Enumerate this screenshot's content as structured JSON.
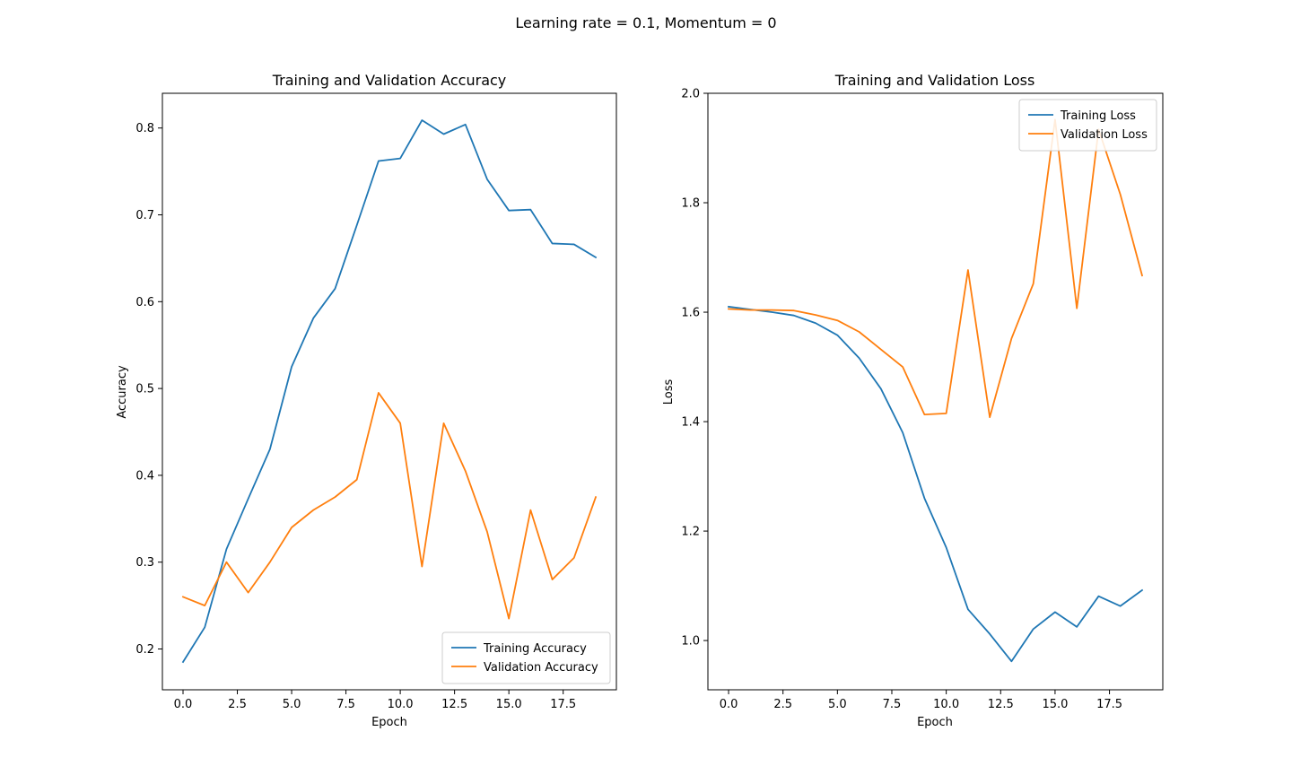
{
  "figure": {
    "suptitle": "Learning rate = 0.1, Momentum = 0"
  },
  "colors": {
    "training": "#1f77b4",
    "validation": "#ff7f0e",
    "axes": "#000000",
    "background": "#ffffff"
  },
  "chart_data": [
    {
      "type": "line",
      "title": "Training and Validation Accuracy",
      "xlabel": "Epoch",
      "ylabel": "Accuracy",
      "xlim": [
        -0.95,
        19.95
      ],
      "ylim": [
        0.153,
        0.84
      ],
      "xticks": [
        0.0,
        2.5,
        5.0,
        7.5,
        10.0,
        12.5,
        15.0,
        17.5
      ],
      "xtick_labels": [
        "0.0",
        "2.5",
        "5.0",
        "7.5",
        "10.0",
        "12.5",
        "15.0",
        "17.5"
      ],
      "yticks": [
        0.2,
        0.3,
        0.4,
        0.5,
        0.6,
        0.7,
        0.8
      ],
      "ytick_labels": [
        "0.2",
        "0.3",
        "0.4",
        "0.5",
        "0.6",
        "0.7",
        "0.8"
      ],
      "grid": false,
      "legend": "lower right",
      "x": [
        0,
        1,
        2,
        3,
        4,
        5,
        6,
        7,
        8,
        9,
        10,
        11,
        12,
        13,
        14,
        15,
        16,
        17,
        18,
        19
      ],
      "series": [
        {
          "name": "Training Accuracy",
          "color": "#1f77b4",
          "values": [
            0.185,
            0.225,
            0.315,
            0.373,
            0.43,
            0.525,
            0.581,
            0.615,
            0.688,
            0.762,
            0.765,
            0.809,
            0.793,
            0.804,
            0.741,
            0.705,
            0.706,
            0.667,
            0.666,
            0.651
          ]
        },
        {
          "name": "Validation Accuracy",
          "color": "#ff7f0e",
          "values": [
            0.26,
            0.25,
            0.3,
            0.265,
            0.3,
            0.34,
            0.36,
            0.375,
            0.395,
            0.495,
            0.46,
            0.295,
            0.46,
            0.405,
            0.335,
            0.235,
            0.36,
            0.28,
            0.305,
            0.375
          ]
        }
      ]
    },
    {
      "type": "line",
      "title": "Training and Validation Loss",
      "xlabel": "Epoch",
      "ylabel": "Loss",
      "xlim": [
        -0.95,
        19.95
      ],
      "ylim": [
        0.91,
        2.0
      ],
      "xticks": [
        0.0,
        2.5,
        5.0,
        7.5,
        10.0,
        12.5,
        15.0,
        17.5
      ],
      "xtick_labels": [
        "0.0",
        "2.5",
        "5.0",
        "7.5",
        "10.0",
        "12.5",
        "15.0",
        "17.5"
      ],
      "yticks": [
        1.0,
        1.2,
        1.4,
        1.6,
        1.8,
        2.0
      ],
      "ytick_labels": [
        "1.0",
        "1.2",
        "1.4",
        "1.6",
        "1.8",
        "2.0"
      ],
      "grid": false,
      "legend": "upper right",
      "x": [
        0,
        1,
        2,
        3,
        4,
        5,
        6,
        7,
        8,
        9,
        10,
        11,
        12,
        13,
        14,
        15,
        16,
        17,
        18,
        19
      ],
      "series": [
        {
          "name": "Training Loss",
          "color": "#1f77b4",
          "values": [
            1.61,
            1.605,
            1.6,
            1.594,
            1.58,
            1.558,
            1.516,
            1.46,
            1.38,
            1.26,
            1.17,
            1.057,
            1.012,
            0.962,
            1.021,
            1.052,
            1.025,
            1.081,
            1.063,
            1.092
          ]
        },
        {
          "name": "Validation Loss",
          "color": "#ff7f0e",
          "values": [
            1.606,
            1.604,
            1.604,
            1.603,
            1.595,
            1.585,
            1.564,
            1.532,
            1.5,
            1.413,
            1.415,
            1.677,
            1.408,
            1.552,
            1.652,
            1.952,
            1.607,
            1.934,
            1.815,
            1.667
          ]
        }
      ]
    }
  ]
}
